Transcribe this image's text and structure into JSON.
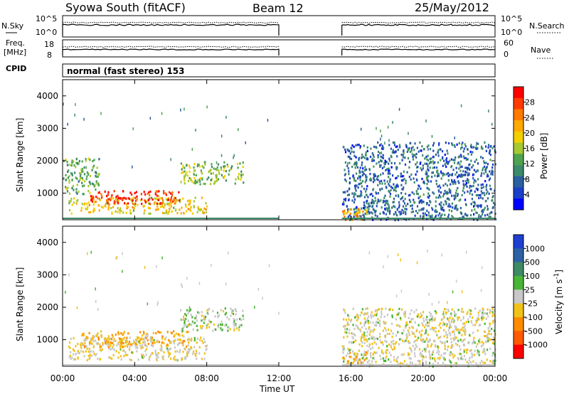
{
  "header": {
    "title": "Syowa South (fitACF)",
    "beam": "Beam 12",
    "date": "25/May/2012"
  },
  "panels": {
    "nsky": {
      "label": "N.Sky",
      "left_ticks": [
        "10^5",
        "10^0"
      ],
      "right_label": "N.Search",
      "right_ticks": [
        "10^5",
        "10^0"
      ]
    },
    "freq": {
      "label_line1": "Freq.",
      "label_line2": "[MHz]",
      "left_ticks": [
        "18",
        "8"
      ],
      "right_label": "Nave",
      "right_ticks": [
        "60",
        "0"
      ]
    },
    "cpid": {
      "label": "CPID",
      "mode": "normal (fast stereo) 153"
    }
  },
  "axes": {
    "y_label": "Slant Range [km]",
    "y_ticks": [
      "4000",
      "3000",
      "2000",
      "1000"
    ],
    "x_label": "Time UT",
    "x_ticks": [
      "00:00",
      "04:00",
      "08:00",
      "12:00",
      "16:00",
      "20:00",
      "00:00"
    ]
  },
  "colorbars": {
    "power": {
      "label": "Power [dB]",
      "ticks": [
        "28",
        "24",
        "20",
        "16",
        "12",
        "8",
        "4"
      ],
      "colors": [
        "#ff0000",
        "#ff3a00",
        "#ff7a00",
        "#ffaa00",
        "#f2d000",
        "#a6c830",
        "#4fa34f",
        "#3c8a6a",
        "#2a5fa0",
        "#1c3fc8",
        "#0000ff"
      ]
    },
    "velocity": {
      "label": "Velocity [m s^-1]",
      "ticks": [
        "1000",
        "500",
        "100",
        "25",
        "-25",
        "-100",
        "-500",
        "-1000"
      ],
      "colors": [
        "#1f3fd0",
        "#2c62a4",
        "#3e8a64",
        "#49b436",
        "#c8c8c8",
        "#f1c21a",
        "#ff8c00",
        "#ff5a00",
        "#ff0000"
      ]
    }
  },
  "chart_data": [
    {
      "type": "heatmap",
      "title": "Power",
      "xlabel": "Time UT",
      "ylabel": "Slant Range [km]",
      "xlim_hours": [
        0,
        24
      ],
      "ylim_km": [
        180,
        4500
      ],
      "colorbar_label": "Power [dB]",
      "colorbar_range": [
        0,
        30
      ],
      "data_gaps_hours": [
        [
          12,
          15.5
        ]
      ],
      "regions": [
        {
          "t": [
            0.3,
            8
          ],
          "range_km": [
            400,
            900
          ],
          "value_db": 18
        },
        {
          "t": [
            1.5,
            6.5
          ],
          "range_km": [
            700,
            1100
          ],
          "value_db": 28
        },
        {
          "t": [
            6.5,
            10
          ],
          "range_km": [
            1300,
            2000
          ],
          "value_db": 14
        },
        {
          "t": [
            0,
            2
          ],
          "range_km": [
            1000,
            2100
          ],
          "value_db": 12
        },
        {
          "t": [
            15.5,
            24
          ],
          "range_km": [
            200,
            2600
          ],
          "value_db": 6
        },
        {
          "t": [
            15.5,
            17
          ],
          "range_km": [
            200,
            600
          ],
          "value_db": 20
        }
      ]
    },
    {
      "type": "heatmap",
      "title": "Velocity",
      "xlabel": "Time UT",
      "ylabel": "Slant Range [km]",
      "xlim_hours": [
        0,
        24
      ],
      "ylim_km": [
        180,
        4500
      ],
      "colorbar_label": "Velocity [m s^-1]",
      "colorbar_range": [
        -1000,
        1000
      ],
      "data_gaps_hours": [
        [
          12,
          15.5
        ]
      ],
      "regions": [
        {
          "t": [
            0.3,
            8
          ],
          "range_km": [
            400,
            1100
          ],
          "value_ms": -100
        },
        {
          "t": [
            1,
            7
          ],
          "range_km": [
            800,
            1300
          ],
          "value_ms": -300
        },
        {
          "t": [
            6.5,
            10
          ],
          "range_km": [
            1300,
            2000
          ],
          "value_ms": 50
        },
        {
          "t": [
            15.5,
            24
          ],
          "range_km": [
            200,
            2000
          ],
          "value_ms": -50
        },
        {
          "t": [
            15.5,
            17
          ],
          "range_km": [
            300,
            700
          ],
          "value_ms": -300
        }
      ]
    }
  ]
}
